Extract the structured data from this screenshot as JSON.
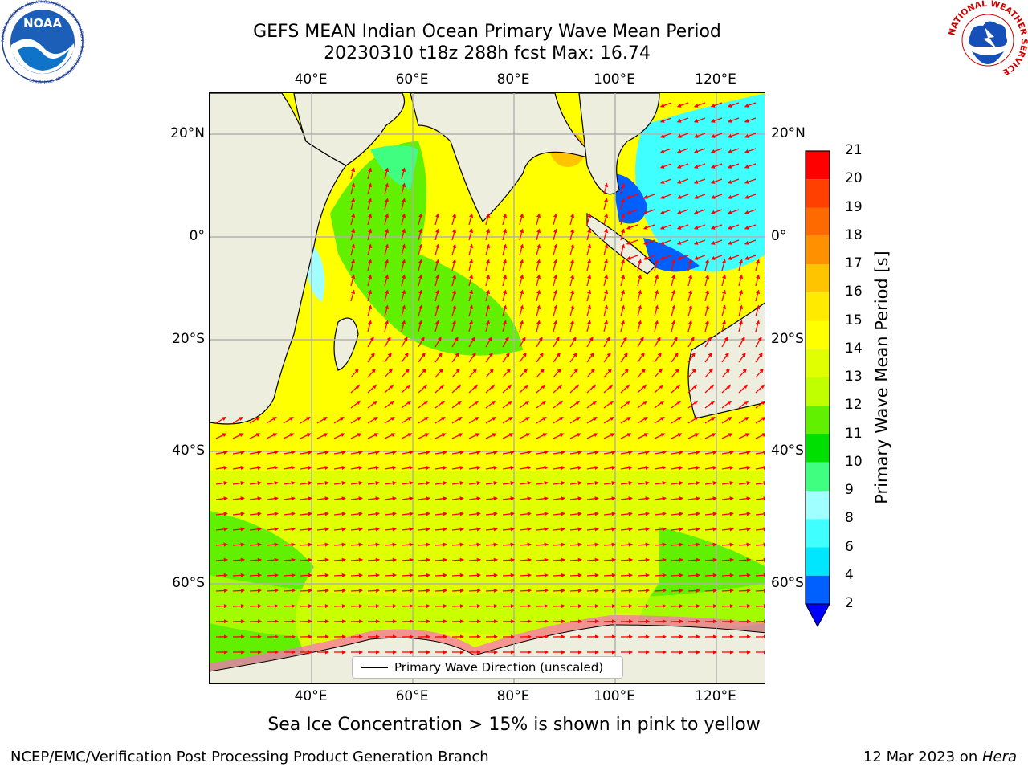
{
  "title_line1": "GEFS MEAN Indian Ocean Primary Wave Mean Period",
  "title_line2": "20230310 t18z 288h fcst   Max: 16.74",
  "lon_ticks": [
    "40°E",
    "60°E",
    "80°E",
    "100°E",
    "120°E"
  ],
  "lat_ticks": [
    "20°N",
    "0°",
    "20°S",
    "40°S",
    "60°S"
  ],
  "colorbar": {
    "label": "Primary Wave Mean Period [s]",
    "ticks": [
      "21",
      "20",
      "19",
      "18",
      "17",
      "16",
      "15",
      "14",
      "13",
      "12",
      "11",
      "10",
      "9",
      "8",
      "6",
      "4",
      "2"
    ],
    "levels": [
      2,
      4,
      6,
      8,
      9,
      10,
      11,
      12,
      13,
      14,
      15,
      16,
      17,
      18,
      19,
      20,
      21
    ],
    "colors": [
      "#0060ff",
      "#00e6ff",
      "#40ffff",
      "#a0ffff",
      "#40ff80",
      "#00e000",
      "#60f000",
      "#c0ff00",
      "#e0ff00",
      "#ffff00",
      "#ffea00",
      "#ffc400",
      "#ff9000",
      "#ff6a00",
      "#ff4000",
      "#ff0000"
    ],
    "under_color": "#0000ff"
  },
  "legend": {
    "label": "Primary Wave Direction (unscaled)"
  },
  "subtitle": "Sea Ice Concentration > 15% is shown in pink to yellow",
  "credit": "NCEP/EMC/Verification Post Processing Product Generation Branch",
  "date_text": "12 Mar 2023 on ",
  "machine": "Hera",
  "logos": {
    "noaa_text": "NOAA",
    "noaa_ring": "NATIONAL OCEANIC AND ATMOSPHERIC ADMINISTRATION · U.S. DEPARTMENT OF COMMERCE",
    "nws_ring": "NATIONAL WEATHER SERVICE"
  },
  "colors": {
    "land": "#eeeedf",
    "arrow": "#ff0000",
    "grid": "#b0b0b0"
  }
}
